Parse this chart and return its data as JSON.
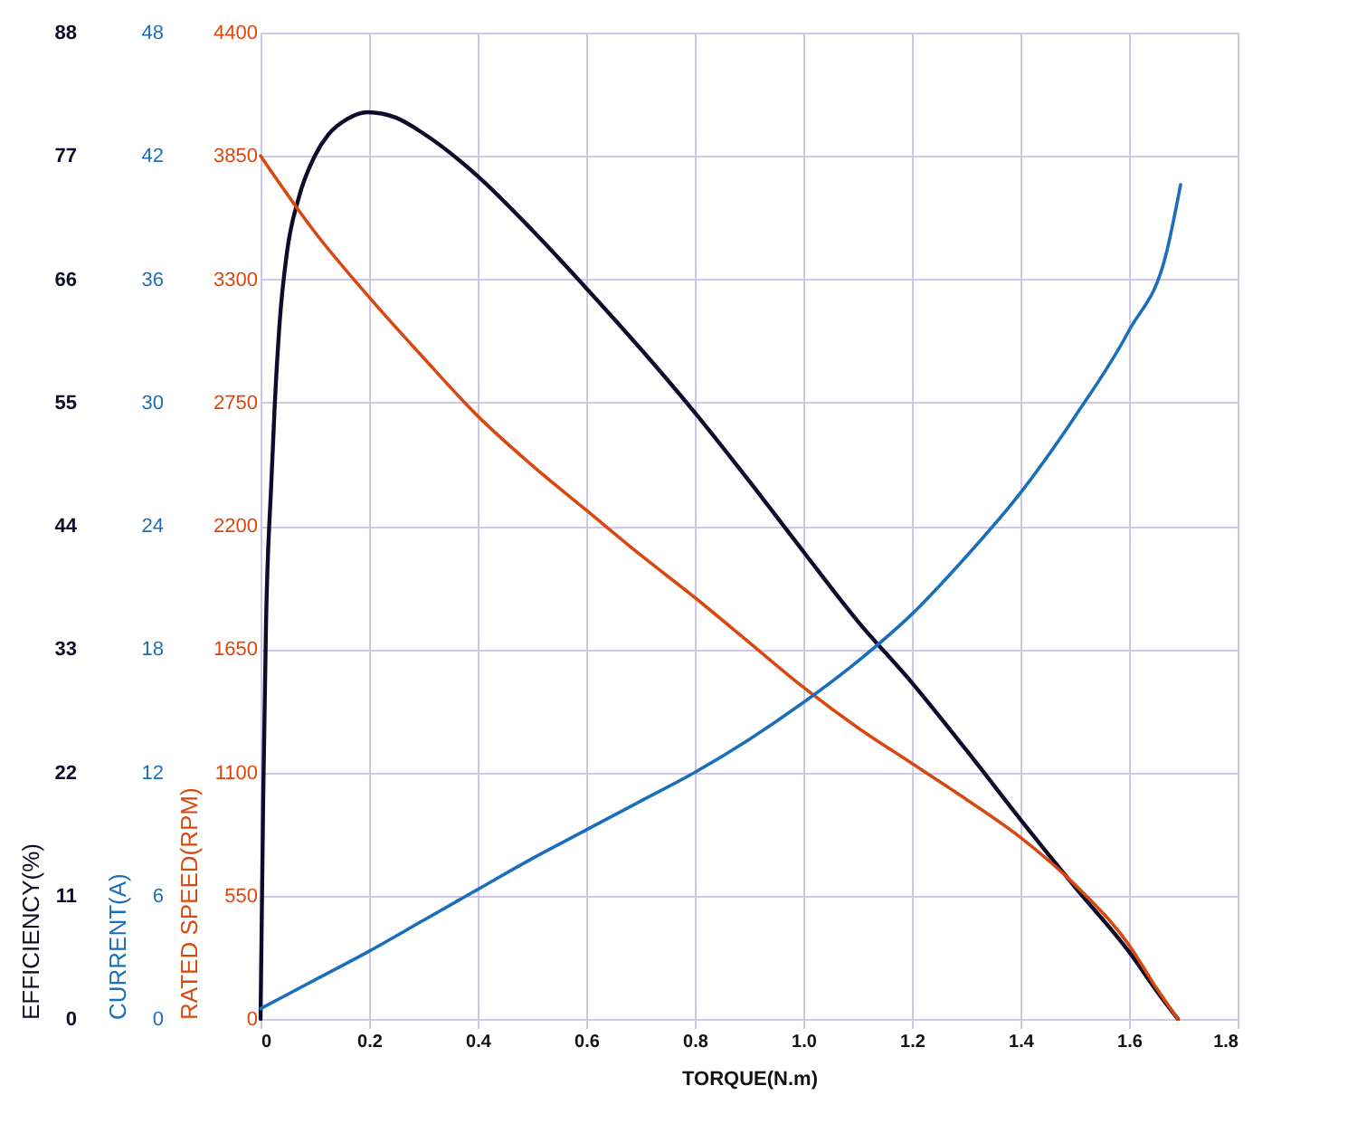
{
  "chart_data": {
    "type": "line",
    "xlabel": "TORQUE(N.m)",
    "ylabel": "EFFICIENCY(%)",
    "y2label": "CURRENT(A)",
    "y3label": "RATED SPEED(RPM)",
    "xlim": [
      0,
      1.8
    ],
    "xticks": [
      0,
      0.2,
      0.4,
      0.6,
      0.8,
      {
        "value": 1,
        "label": "1.0"
      },
      1.2,
      1.4,
      1.6,
      1.8
    ],
    "ylim": [
      0,
      88
    ],
    "yticks": [
      0,
      11,
      22,
      33,
      44,
      55,
      66,
      77,
      88
    ],
    "y2lim": [
      0,
      48
    ],
    "y2ticks": [
      0,
      6,
      12,
      18,
      24,
      30,
      36,
      42,
      48
    ],
    "y3lim": [
      0,
      4400
    ],
    "y3ticks": [
      0,
      550,
      1100,
      1650,
      2200,
      2750,
      3300,
      3850,
      4400
    ],
    "grid": true,
    "marker": "none",
    "line_style": "solid",
    "series": [
      {
        "color": "#0d0d2b",
        "axis": "y",
        "x": [
          0,
          0.005,
          0.01,
          0.02,
          0.026,
          0.035,
          0.049,
          0.07,
          0.1,
          0.125,
          0.16,
          0.197,
          0.25,
          0.3,
          0.4,
          0.5,
          0.6,
          0.7,
          0.8,
          0.9,
          1.0,
          1.1,
          1.2,
          1.3,
          1.4,
          1.5,
          1.6,
          1.66,
          1.69
        ],
        "values": [
          0,
          20,
          35,
          48,
          54.6,
          62,
          68.5,
          73.2,
          77,
          78.9,
          80.3,
          80.9,
          80.4,
          79,
          75.2,
          70.4,
          65.2,
          59.8,
          54.1,
          48,
          41.7,
          35.5,
          30,
          24,
          17.8,
          11.8,
          6,
          1.9,
          0
        ]
      },
      {
        "color": "#d9480f",
        "axis": "y3",
        "x": [
          0,
          0.1,
          0.2,
          0.3,
          0.4,
          0.5,
          0.6,
          0.7,
          0.8,
          0.9,
          1.0,
          1.1,
          1.2,
          1.3,
          1.4,
          1.5,
          1.6,
          1.65,
          1.69
        ],
        "values": [
          3850,
          3510,
          3220,
          2950,
          2690,
          2470,
          2270,
          2070,
          1880,
          1680,
          1480,
          1300,
          1140,
          980,
          810,
          600,
          330,
          140,
          0
        ]
      },
      {
        "color": "#1b6fba",
        "axis": "y2",
        "x": [
          0,
          0.1,
          0.2,
          0.3,
          0.4,
          0.5,
          0.6,
          0.7,
          0.8,
          0.9,
          1.0,
          1.1,
          1.2,
          1.3,
          1.4,
          1.5,
          1.6,
          1.67,
          1.695
        ],
        "values": [
          0.5,
          1.9,
          3.3,
          4.8,
          6.3,
          7.8,
          9.2,
          10.6,
          12,
          13.6,
          15.4,
          17.4,
          19.7,
          22.5,
          25.6,
          29.3,
          33.5,
          37.4,
          40.6
        ]
      }
    ]
  }
}
